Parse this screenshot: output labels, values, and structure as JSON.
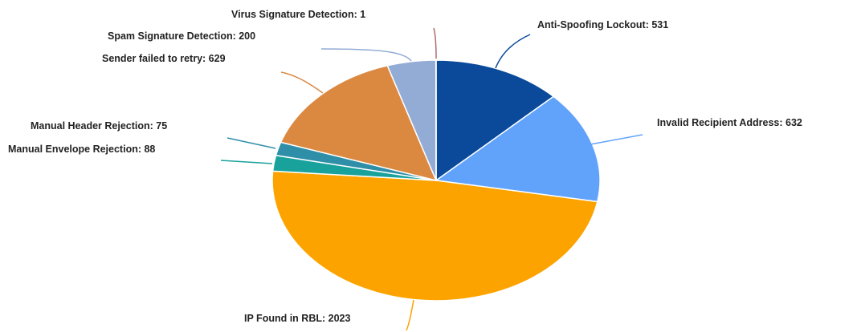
{
  "chart_data": {
    "type": "pie",
    "title": "",
    "slices": [
      {
        "label": "Anti-Spoofing Lockout",
        "value": 531,
        "text": "Anti-Spoofing Lockout: 531",
        "color": "#0b4a9b"
      },
      {
        "label": "Invalid Recipient Address",
        "value": 632,
        "text": "Invalid Recipient Address: 632",
        "color": "#61a3fb"
      },
      {
        "label": "IP Found in RBL",
        "value": 2023,
        "text": "IP Found in RBL: 2023",
        "color": "#fca300"
      },
      {
        "label": "Manual Envelope Rejection",
        "value": 88,
        "text": "Manual Envelope Rejection: 88",
        "color": "#18a29b"
      },
      {
        "label": "Manual Header Rejection",
        "value": 75,
        "text": "Manual Header Rejection: 75",
        "color": "#2f8fa8"
      },
      {
        "label": "Sender failed to retry",
        "value": 629,
        "text": "Sender failed to retry: 629",
        "color": "#db8841"
      },
      {
        "label": "Spam Signature Detection",
        "value": 200,
        "text": "Spam Signature Detection: 200",
        "color": "#93acd6"
      },
      {
        "label": "Virus Signature Detection",
        "value": 1,
        "text": "Virus Signature Detection: 1",
        "color": "#b06b6b"
      }
    ]
  }
}
